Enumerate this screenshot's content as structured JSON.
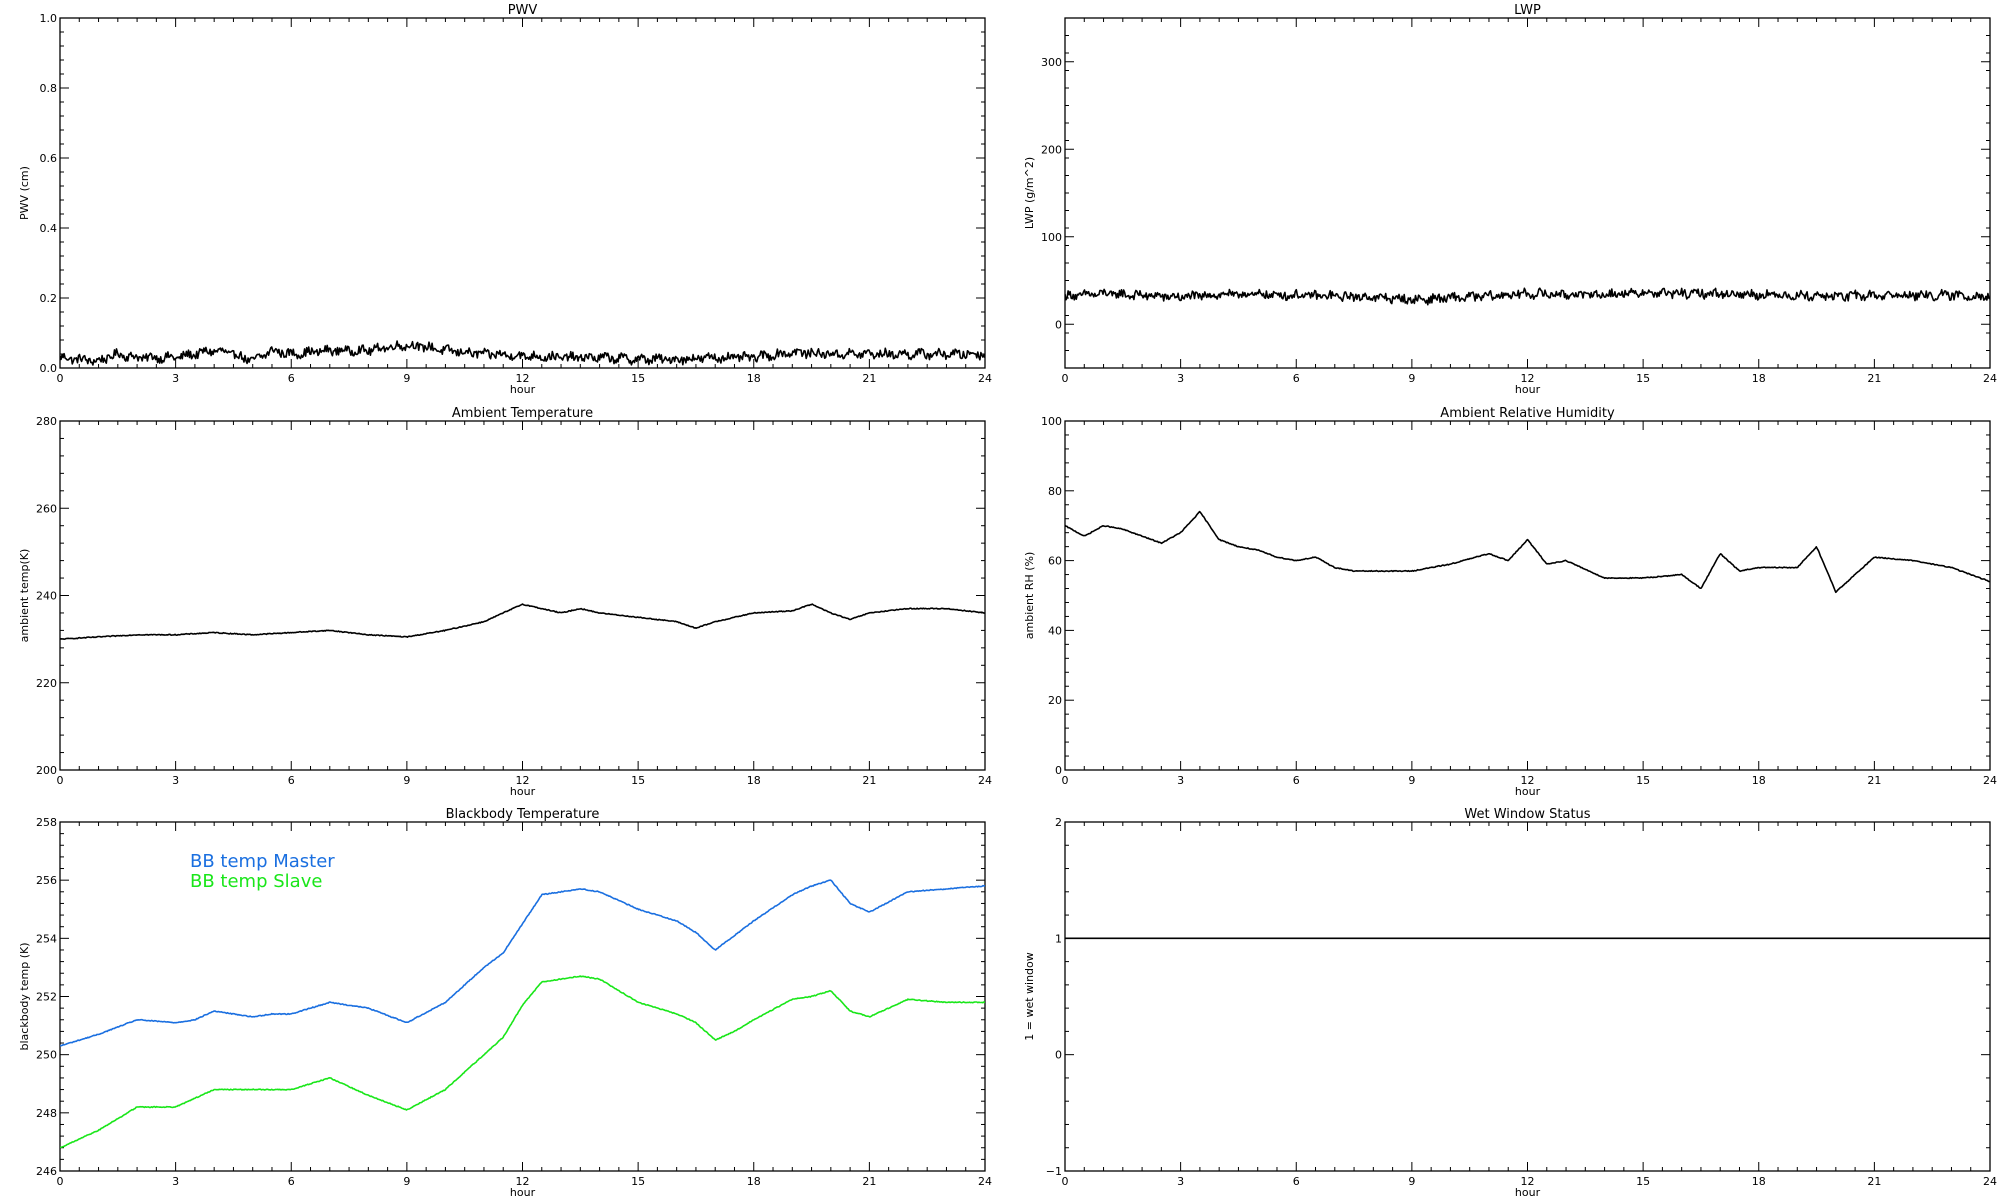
{
  "colors": {
    "background": "#ffffff",
    "axis": "#000000",
    "master": "#1a6fe0",
    "slave": "#19e619"
  },
  "chart_data": [
    {
      "type": "line",
      "title": "PWV",
      "xlabel": "hour",
      "ylabel": "PWV (cm)",
      "xlim": [
        0,
        24
      ],
      "ylim": [
        0,
        1.0
      ],
      "xticks": [
        0,
        3,
        6,
        9,
        12,
        15,
        18,
        21,
        24
      ],
      "yticks": [
        0.0,
        0.2,
        0.4,
        0.6,
        0.8,
        1.0
      ],
      "ytick_labels": [
        "0.0",
        "0.2",
        "0.4",
        "0.6",
        "0.8",
        "1.0"
      ],
      "noisy": true,
      "series": [
        {
          "color": "#000000",
          "x": [
            0,
            1,
            1.5,
            2,
            3,
            3.5,
            4,
            4.5,
            5,
            5.5,
            6,
            7,
            8,
            8.5,
            9,
            9.5,
            10,
            11,
            12,
            13,
            14,
            15,
            16,
            17,
            18,
            19,
            20,
            21,
            22,
            23,
            24
          ],
          "y": [
            0.03,
            0.02,
            0.04,
            0.03,
            0.03,
            0.04,
            0.05,
            0.04,
            0.02,
            0.05,
            0.04,
            0.05,
            0.05,
            0.06,
            0.065,
            0.06,
            0.05,
            0.04,
            0.035,
            0.03,
            0.03,
            0.025,
            0.025,
            0.03,
            0.03,
            0.045,
            0.04,
            0.04,
            0.04,
            0.04,
            0.04
          ]
        }
      ]
    },
    {
      "type": "line",
      "title": "LWP",
      "xlabel": "hour",
      "ylabel": "LWP (g/m^2)",
      "xlim": [
        0,
        24
      ],
      "ylim": [
        -50,
        350
      ],
      "xticks": [
        0,
        3,
        6,
        9,
        12,
        15,
        18,
        21,
        24
      ],
      "yticks": [
        0,
        100,
        200,
        300
      ],
      "ytick_labels": [
        "0",
        "100",
        "200",
        "300"
      ],
      "noisy": true,
      "series": [
        {
          "color": "#000000",
          "x": [
            0,
            1,
            2,
            3,
            4,
            5,
            6,
            7,
            8,
            9,
            10,
            11,
            12,
            13,
            14,
            15,
            16,
            17,
            18,
            19,
            20,
            21,
            22,
            23,
            24
          ],
          "y": [
            32,
            35,
            33,
            31,
            34,
            34,
            33,
            32,
            31,
            28,
            30,
            32,
            35,
            34,
            34,
            36,
            35,
            35,
            34,
            33,
            32,
            33,
            33,
            33,
            32
          ]
        }
      ]
    },
    {
      "type": "line",
      "title": "Ambient Temperature",
      "xlabel": "hour",
      "ylabel": "ambient temp(K)",
      "xlim": [
        0,
        24
      ],
      "ylim": [
        200,
        280
      ],
      "xticks": [
        0,
        3,
        6,
        9,
        12,
        15,
        18,
        21,
        24
      ],
      "yticks": [
        200,
        220,
        240,
        260,
        280
      ],
      "ytick_labels": [
        "200",
        "220",
        "240",
        "260",
        "280"
      ],
      "noisy": false,
      "series": [
        {
          "color": "#000000",
          "x": [
            0,
            1,
            2,
            3,
            4,
            5,
            6,
            7,
            8,
            9,
            10,
            11,
            11.5,
            12,
            12.5,
            13,
            13.5,
            14,
            15,
            16,
            16.5,
            17,
            18,
            19,
            19.5,
            20,
            20.5,
            21,
            22,
            23,
            24
          ],
          "y": [
            230,
            230.5,
            231,
            231,
            231.5,
            231,
            231.5,
            232,
            231,
            230.5,
            232,
            234,
            236,
            238,
            237,
            236,
            237,
            236,
            235,
            234,
            232.5,
            234,
            236,
            236.5,
            238,
            236,
            234.5,
            236,
            237,
            237,
            236
          ]
        }
      ]
    },
    {
      "type": "line",
      "title": "Ambient Relative Humidity",
      "xlabel": "hour",
      "ylabel": "ambient RH (%)",
      "xlim": [
        0,
        24
      ],
      "ylim": [
        0,
        100
      ],
      "xticks": [
        0,
        3,
        6,
        9,
        12,
        15,
        18,
        21,
        24
      ],
      "yticks": [
        0,
        20,
        40,
        60,
        80,
        100
      ],
      "ytick_labels": [
        "0",
        "20",
        "40",
        "60",
        "80",
        "100"
      ],
      "noisy": false,
      "series": [
        {
          "color": "#000000",
          "x": [
            0,
            0.5,
            1,
            1.5,
            2,
            2.5,
            3,
            3.5,
            4,
            4.5,
            5,
            5.5,
            6,
            6.5,
            7,
            7.5,
            8,
            9,
            10,
            11,
            11.5,
            12,
            12.5,
            13,
            14,
            15,
            16,
            16.5,
            17,
            17.5,
            18,
            19,
            19.5,
            20,
            20.5,
            21,
            22,
            23,
            24
          ],
          "y": [
            70,
            67,
            70,
            69,
            67,
            65,
            68,
            74,
            66,
            64,
            63,
            61,
            60,
            61,
            58,
            57,
            57,
            57,
            59,
            62,
            60,
            66,
            59,
            60,
            55,
            55,
            56,
            52,
            62,
            57,
            58,
            58,
            64,
            51,
            56,
            61,
            60,
            58,
            54
          ]
        }
      ]
    },
    {
      "type": "line",
      "title": "Blackbody Temperature",
      "xlabel": "hour",
      "ylabel": "blackbody temp (K)",
      "xlim": [
        0,
        24
      ],
      "ylim": [
        246,
        258
      ],
      "xticks": [
        0,
        3,
        6,
        9,
        12,
        15,
        18,
        21,
        24
      ],
      "yticks": [
        246,
        248,
        250,
        252,
        254,
        256,
        258
      ],
      "ytick_labels": [
        "246",
        "248",
        "250",
        "252",
        "254",
        "256",
        "258"
      ],
      "noisy": false,
      "legend": [
        "BB temp Master",
        "BB temp Slave"
      ],
      "legend_position": "top-left",
      "series": [
        {
          "name": "BB temp Master",
          "color": "#1a6fe0",
          "x": [
            0,
            1,
            2,
            3,
            3.5,
            4,
            4.5,
            5,
            5.5,
            6,
            7,
            8,
            9,
            10,
            11,
            11.5,
            12,
            12.5,
            13,
            13.5,
            14,
            15,
            16,
            16.5,
            17,
            17.5,
            18,
            19,
            19.5,
            20,
            20.5,
            21,
            22,
            23,
            24
          ],
          "y": [
            250.3,
            250.7,
            251.2,
            251.1,
            251.2,
            251.5,
            251.4,
            251.3,
            251.4,
            251.4,
            251.8,
            251.6,
            251.1,
            251.8,
            253.0,
            253.5,
            254.5,
            255.5,
            255.6,
            255.7,
            255.6,
            255.0,
            254.6,
            254.2,
            253.6,
            254.1,
            254.6,
            255.5,
            255.8,
            256.0,
            255.2,
            254.9,
            255.6,
            255.7,
            255.8
          ]
        },
        {
          "name": "BB temp Slave",
          "color": "#19e619",
          "x": [
            0,
            1,
            2,
            3,
            3.5,
            4,
            4.5,
            5,
            5.5,
            6,
            7,
            8,
            9,
            10,
            11,
            11.5,
            12,
            12.5,
            13,
            13.5,
            14,
            15,
            16,
            16.5,
            17,
            17.5,
            18,
            19,
            19.5,
            20,
            20.5,
            21,
            22,
            23,
            24
          ],
          "y": [
            246.8,
            247.4,
            248.2,
            248.2,
            248.5,
            248.8,
            248.8,
            248.8,
            248.8,
            248.8,
            249.2,
            248.6,
            248.1,
            248.8,
            250.0,
            250.6,
            251.7,
            252.5,
            252.6,
            252.7,
            252.6,
            251.8,
            251.4,
            251.1,
            250.5,
            250.8,
            251.2,
            251.9,
            252.0,
            252.2,
            251.5,
            251.3,
            251.9,
            251.8,
            251.8
          ]
        }
      ]
    },
    {
      "type": "line",
      "title": "Wet Window Status",
      "xlabel": "hour",
      "ylabel": "1 = wet window",
      "xlim": [
        0,
        24
      ],
      "ylim": [
        -1,
        2
      ],
      "xticks": [
        0,
        3,
        6,
        9,
        12,
        15,
        18,
        21,
        24
      ],
      "yticks": [
        -1,
        0,
        1,
        2
      ],
      "ytick_labels": [
        "−1",
        "0",
        "1",
        "2"
      ],
      "noisy": false,
      "series": [
        {
          "color": "#000000",
          "x": [
            0,
            24
          ],
          "y": [
            1,
            1
          ]
        }
      ]
    }
  ]
}
